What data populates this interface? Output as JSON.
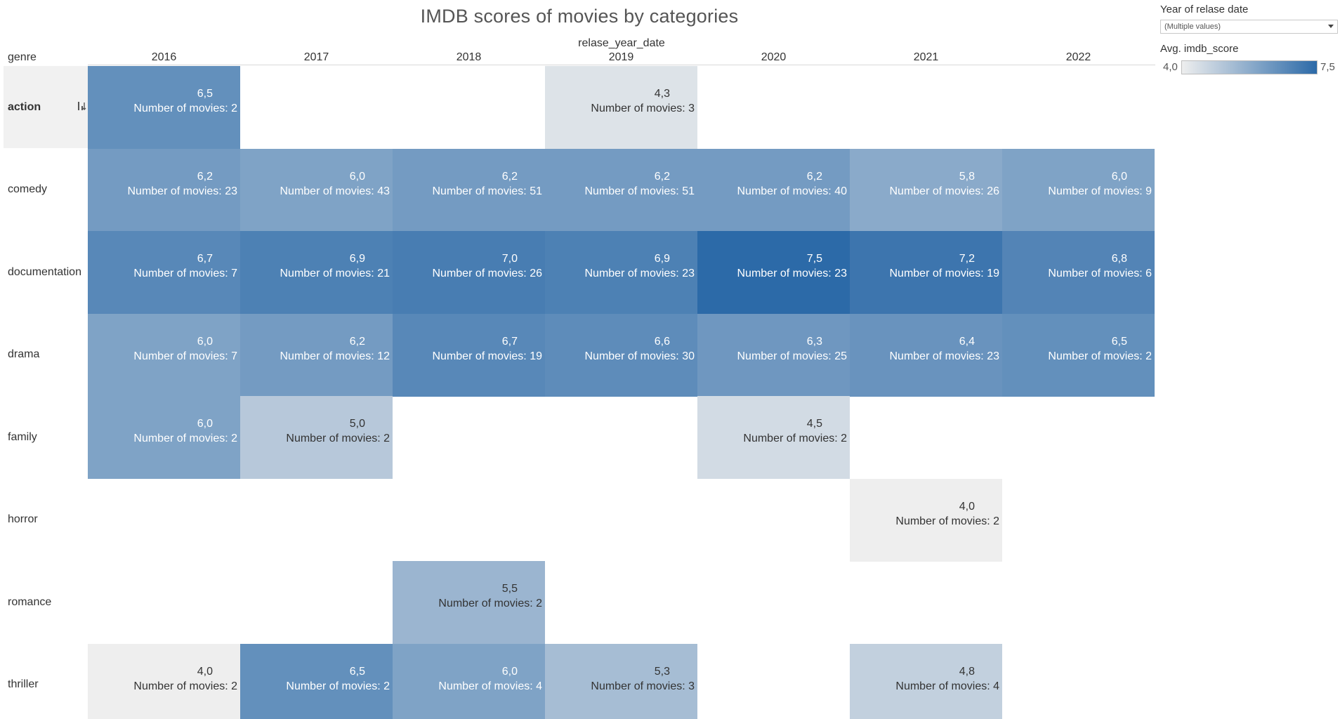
{
  "header": {
    "title": "IMDB scores of movies by categories",
    "column_field": "relase_year_date",
    "row_field": "genre"
  },
  "legend": {
    "filter_title": "Year of relase date",
    "filter_value": "(Multiple values)",
    "color_title": "Avg. imdb_score",
    "min_label": "4,0",
    "max_label": "7,5",
    "color_min": "#eeeeee",
    "color_max": "#2c6aa8"
  },
  "chart_data": {
    "type": "heatmap",
    "title": "IMDB scores of movies by categories",
    "xlabel": "relase_year_date",
    "ylabel": "genre",
    "color_scale": {
      "label": "Avg. imdb_score",
      "min": 4.0,
      "max": 7.5,
      "from": "#eeeeee",
      "to": "#2c6aa8"
    },
    "years": [
      "2016",
      "2017",
      "2018",
      "2019",
      "2020",
      "2021",
      "2022"
    ],
    "genres": [
      "action",
      "comedy",
      "documentation",
      "drama",
      "family",
      "horror",
      "romance",
      "thriller"
    ],
    "count_prefix": "Number of movies: ",
    "cells": [
      {
        "genre": "action",
        "year": "2016",
        "score": 6.5,
        "score_label": "6,5",
        "count": 2
      },
      {
        "genre": "action",
        "year": "2019",
        "score": 4.3,
        "score_label": "4,3",
        "count": 3
      },
      {
        "genre": "comedy",
        "year": "2016",
        "score": 6.2,
        "score_label": "6,2",
        "count": 23
      },
      {
        "genre": "comedy",
        "year": "2017",
        "score": 6.0,
        "score_label": "6,0",
        "count": 43
      },
      {
        "genre": "comedy",
        "year": "2018",
        "score": 6.2,
        "score_label": "6,2",
        "count": 51
      },
      {
        "genre": "comedy",
        "year": "2019",
        "score": 6.2,
        "score_label": "6,2",
        "count": 51
      },
      {
        "genre": "comedy",
        "year": "2020",
        "score": 6.2,
        "score_label": "6,2",
        "count": 40
      },
      {
        "genre": "comedy",
        "year": "2021",
        "score": 5.8,
        "score_label": "5,8",
        "count": 26
      },
      {
        "genre": "comedy",
        "year": "2022",
        "score": 6.0,
        "score_label": "6,0",
        "count": 9
      },
      {
        "genre": "documentation",
        "year": "2016",
        "score": 6.7,
        "score_label": "6,7",
        "count": 7
      },
      {
        "genre": "documentation",
        "year": "2017",
        "score": 6.9,
        "score_label": "6,9",
        "count": 21
      },
      {
        "genre": "documentation",
        "year": "2018",
        "score": 7.0,
        "score_label": "7,0",
        "count": 26
      },
      {
        "genre": "documentation",
        "year": "2019",
        "score": 6.9,
        "score_label": "6,9",
        "count": 23
      },
      {
        "genre": "documentation",
        "year": "2020",
        "score": 7.5,
        "score_label": "7,5",
        "count": 23
      },
      {
        "genre": "documentation",
        "year": "2021",
        "score": 7.2,
        "score_label": "7,2",
        "count": 19
      },
      {
        "genre": "documentation",
        "year": "2022",
        "score": 6.8,
        "score_label": "6,8",
        "count": 6
      },
      {
        "genre": "drama",
        "year": "2016",
        "score": 6.0,
        "score_label": "6,0",
        "count": 7
      },
      {
        "genre": "drama",
        "year": "2017",
        "score": 6.2,
        "score_label": "6,2",
        "count": 12
      },
      {
        "genre": "drama",
        "year": "2018",
        "score": 6.7,
        "score_label": "6,7",
        "count": 19
      },
      {
        "genre": "drama",
        "year": "2019",
        "score": 6.6,
        "score_label": "6,6",
        "count": 30
      },
      {
        "genre": "drama",
        "year": "2020",
        "score": 6.3,
        "score_label": "6,3",
        "count": 25
      },
      {
        "genre": "drama",
        "year": "2021",
        "score": 6.4,
        "score_label": "6,4",
        "count": 23
      },
      {
        "genre": "drama",
        "year": "2022",
        "score": 6.5,
        "score_label": "6,5",
        "count": 2
      },
      {
        "genre": "family",
        "year": "2016",
        "score": 6.0,
        "score_label": "6,0",
        "count": 2
      },
      {
        "genre": "family",
        "year": "2017",
        "score": 5.0,
        "score_label": "5,0",
        "count": 2
      },
      {
        "genre": "family",
        "year": "2020",
        "score": 4.5,
        "score_label": "4,5",
        "count": 2
      },
      {
        "genre": "horror",
        "year": "2021",
        "score": 4.0,
        "score_label": "4,0",
        "count": 2
      },
      {
        "genre": "romance",
        "year": "2018",
        "score": 5.5,
        "score_label": "5,5",
        "count": 2
      },
      {
        "genre": "thriller",
        "year": "2016",
        "score": 4.0,
        "score_label": "4,0",
        "count": 2
      },
      {
        "genre": "thriller",
        "year": "2017",
        "score": 6.5,
        "score_label": "6,5",
        "count": 2
      },
      {
        "genre": "thriller",
        "year": "2018",
        "score": 6.0,
        "score_label": "6,0",
        "count": 4
      },
      {
        "genre": "thriller",
        "year": "2019",
        "score": 5.3,
        "score_label": "5,3",
        "count": 3
      },
      {
        "genre": "thriller",
        "year": "2021",
        "score": 4.8,
        "score_label": "4,8",
        "count": 4
      }
    ]
  }
}
